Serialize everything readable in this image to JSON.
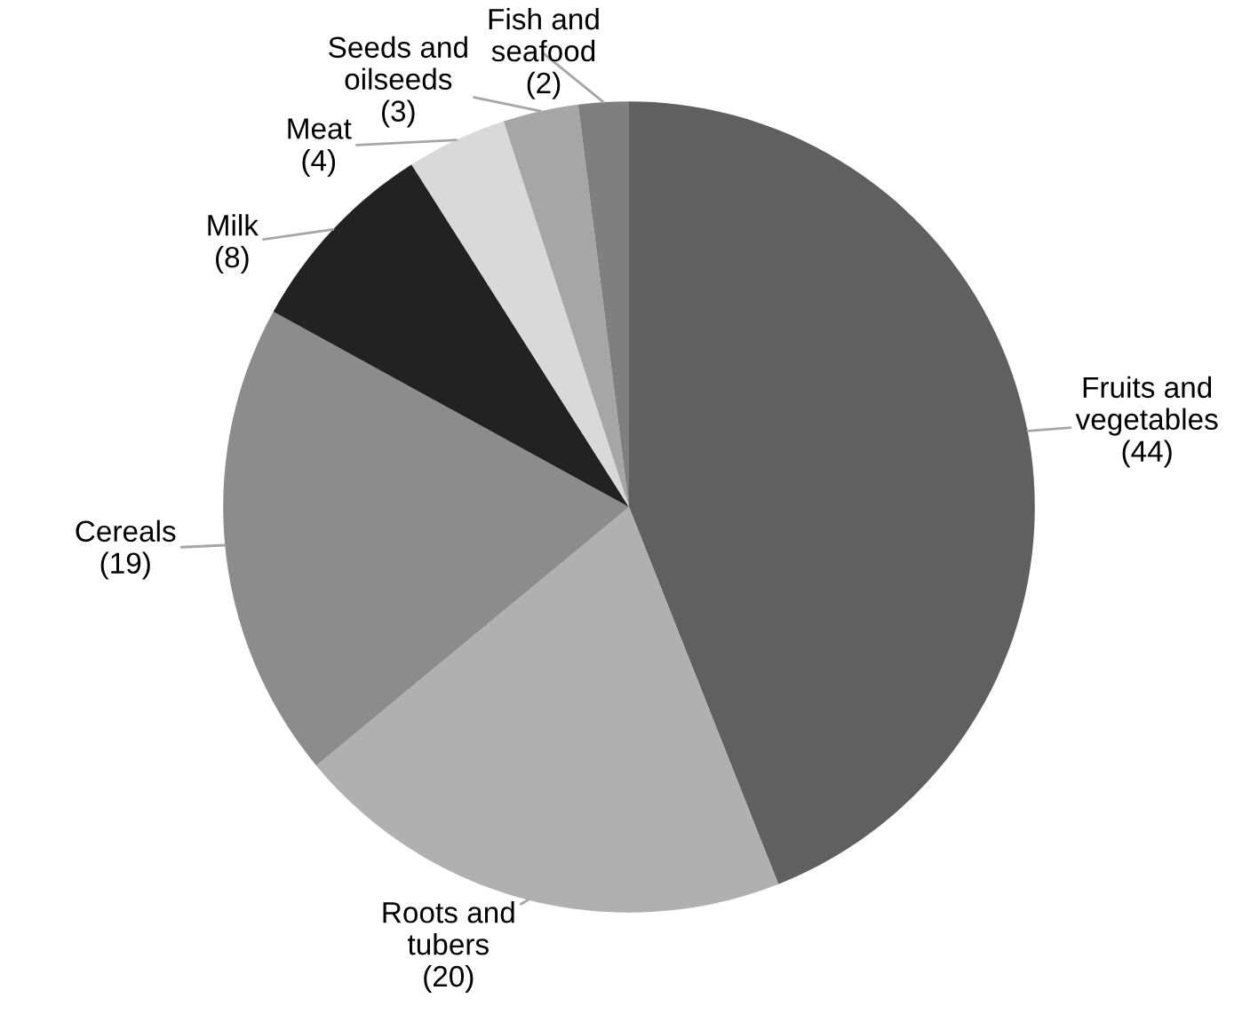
{
  "chart_data": {
    "type": "pie",
    "categories": [
      "Fruits and vegetables",
      "Roots and tubers",
      "Cereals",
      "Milk",
      "Meat",
      "Seeds and oilseeds",
      "Fish and seafood"
    ],
    "values": [
      44,
      20,
      19,
      8,
      4,
      3,
      2
    ],
    "value_labels": [
      "(44)",
      "(20)",
      "(19)",
      "(8)",
      "(4)",
      "(3)",
      "(2)"
    ],
    "colors": [
      "#606060",
      "#b0b0b0",
      "#8c8c8c",
      "#222222",
      "#d9d9d9",
      "#a6a6a6",
      "#7f7f7f"
    ],
    "legend": false
  }
}
